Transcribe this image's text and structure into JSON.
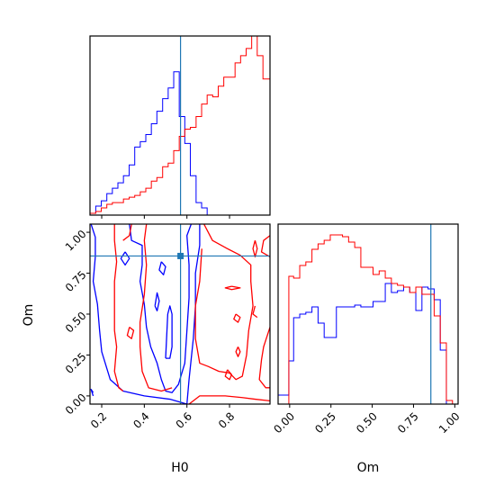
{
  "chart_data": {
    "type": "corner",
    "variables": [
      "H0",
      "Om"
    ],
    "truth": {
      "H0": 0.57,
      "Om": 0.855
    },
    "truth_color": "#1f77b4",
    "series": [
      {
        "color": "#0000ff"
      },
      {
        "color": "#ff0000"
      }
    ],
    "panels": [
      {
        "id": "hist-H0",
        "type": "step-histogram",
        "x_range": [
          0.145,
          0.99
        ],
        "x_ticks": [
          0.2,
          0.4,
          0.6,
          0.8
        ],
        "y_range": [
          0,
          1.0
        ],
        "bin_edges": [
          0.145,
          0.172,
          0.198,
          0.224,
          0.25,
          0.276,
          0.302,
          0.329,
          0.355,
          0.381,
          0.407,
          0.433,
          0.459,
          0.486,
          0.512,
          0.538,
          0.564,
          0.59,
          0.616,
          0.643,
          0.669,
          0.695,
          0.721,
          0.747,
          0.773,
          0.8,
          0.826,
          0.852,
          0.878,
          0.904,
          0.93,
          0.957,
          0.99
        ],
        "counts": [
          [
            0.01,
            0.05,
            0.08,
            0.12,
            0.15,
            0.18,
            0.22,
            0.28,
            0.38,
            0.41,
            0.45,
            0.51,
            0.58,
            0.65,
            0.71,
            0.8,
            0.55,
            0.4,
            0.22,
            0.07,
            0.04,
            0.0,
            0.0,
            0.0,
            0.0,
            0.0,
            0.0,
            0.0,
            0.0,
            0.0,
            0.0,
            0.0
          ],
          [
            0.01,
            0.02,
            0.04,
            0.06,
            0.07,
            0.07,
            0.09,
            0.1,
            0.11,
            0.13,
            0.15,
            0.19,
            0.21,
            0.27,
            0.29,
            0.36,
            0.44,
            0.48,
            0.49,
            0.55,
            0.62,
            0.67,
            0.66,
            0.72,
            0.77,
            0.77,
            0.85,
            0.89,
            0.93,
            1.0,
            0.89,
            0.76
          ]
        ]
      },
      {
        "id": "hist-Om",
        "type": "step-histogram",
        "x_range": [
          -0.07,
          1.02
        ],
        "x_ticks": [
          0.0,
          0.25,
          0.5,
          0.75,
          1.0
        ],
        "x_tick_labels": [
          "0.00",
          "0.25",
          "0.50",
          "0.75",
          "1.00"
        ],
        "y_range": [
          0,
          1.0
        ],
        "bin_edges": [
          -0.07,
          -0.005,
          0.024,
          0.061,
          0.098,
          0.135,
          0.172,
          0.209,
          0.246,
          0.283,
          0.32,
          0.357,
          0.394,
          0.431,
          0.468,
          0.505,
          0.542,
          0.579,
          0.616,
          0.653,
          0.69,
          0.727,
          0.764,
          0.801,
          0.838,
          0.875,
          0.912,
          0.949,
          0.986,
          1.02
        ],
        "counts": [
          [
            0.05,
            0.24,
            0.48,
            0.5,
            0.51,
            0.54,
            0.45,
            0.37,
            0.37,
            0.54,
            0.54,
            0.54,
            0.55,
            0.54,
            0.54,
            0.57,
            0.57,
            0.67,
            0.62,
            0.63,
            0.65,
            0.62,
            0.52,
            0.65,
            0.64,
            0.58,
            0.3,
            0.0,
            0.0
          ],
          [
            0.0,
            0.71,
            0.7,
            0.77,
            0.79,
            0.86,
            0.89,
            0.91,
            0.94,
            0.94,
            0.93,
            0.9,
            0.87,
            0.76,
            0.76,
            0.72,
            0.74,
            0.7,
            0.67,
            0.66,
            0.65,
            0.62,
            0.65,
            0.61,
            0.61,
            0.49,
            0.34,
            0.02,
            0.0
          ]
        ]
      },
      {
        "id": "contour-H0-Om",
        "type": "contour",
        "x": "H0",
        "y": "Om",
        "x_range": [
          0.145,
          0.99
        ],
        "y_range": [
          -0.05,
          1.05
        ],
        "x_ticks": [
          0.2,
          0.4,
          0.6,
          0.8
        ],
        "y_ticks": [
          0.0,
          0.25,
          0.5,
          0.75,
          1.0
        ],
        "y_tick_labels": [
          "0.00",
          "0.25",
          "0.50",
          "0.75",
          "1.00"
        ],
        "contours": [
          [
            [
              [
                0.33,
                1.05
              ],
              [
                0.34,
                0.95
              ],
              [
                0.39,
                0.92
              ],
              [
                0.39,
                0.8
              ],
              [
                0.38,
                0.7
              ],
              [
                0.4,
                0.56
              ],
              [
                0.41,
                0.42
              ],
              [
                0.43,
                0.3
              ],
              [
                0.46,
                0.2
              ],
              [
                0.48,
                0.1
              ],
              [
                0.5,
                0.03
              ],
              [
                0.53,
                0.02
              ],
              [
                0.56,
                0.07
              ],
              [
                0.59,
                0.2
              ],
              [
                0.6,
                0.4
              ],
              [
                0.61,
                0.6
              ],
              [
                0.61,
                0.8
              ],
              [
                0.6,
                0.98
              ],
              [
                0.62,
                1.05
              ]
            ],
            [
              [
                0.15,
                1.05
              ],
              [
                0.17,
                0.97
              ],
              [
                0.17,
                0.85
              ],
              [
                0.16,
                0.7
              ],
              [
                0.18,
                0.56
              ],
              [
                0.19,
                0.4
              ],
              [
                0.2,
                0.27
              ],
              [
                0.24,
                0.1
              ],
              [
                0.3,
                0.03
              ],
              [
                0.4,
                0.0
              ],
              [
                0.52,
                -0.02
              ],
              [
                0.6,
                -0.05
              ]
            ],
            [
              [
                0.66,
                1.05
              ],
              [
                0.66,
                0.92
              ],
              [
                0.64,
                0.75
              ],
              [
                0.64,
                0.55
              ],
              [
                0.63,
                0.35
              ],
              [
                0.61,
                0.1
              ],
              [
                0.6,
                -0.05
              ]
            ],
            [
              [
                0.5,
                0.23
              ],
              [
                0.51,
                0.5
              ],
              [
                0.52,
                0.55
              ],
              [
                0.53,
                0.5
              ],
              [
                0.53,
                0.3
              ],
              [
                0.52,
                0.23
              ],
              [
                0.5,
                0.23
              ]
            ],
            [
              [
                0.45,
                0.55
              ],
              [
                0.46,
                0.63
              ],
              [
                0.47,
                0.58
              ],
              [
                0.46,
                0.52
              ],
              [
                0.45,
                0.55
              ]
            ],
            [
              [
                0.31,
                0.88
              ],
              [
                0.29,
                0.84
              ],
              [
                0.31,
                0.8
              ],
              [
                0.33,
                0.84
              ],
              [
                0.31,
                0.88
              ]
            ],
            [
              [
                0.48,
                0.82
              ],
              [
                0.47,
                0.77
              ],
              [
                0.49,
                0.74
              ],
              [
                0.5,
                0.79
              ],
              [
                0.48,
                0.82
              ]
            ],
            [
              [
                0.16,
                0.0
              ],
              [
                0.15,
                0.04
              ],
              [
                0.16,
                0.02
              ]
            ]
          ],
          [
            [
              [
                0.26,
                1.05
              ],
              [
                0.26,
                0.95
              ],
              [
                0.27,
                0.82
              ],
              [
                0.26,
                0.7
              ],
              [
                0.26,
                0.55
              ],
              [
                0.26,
                0.4
              ],
              [
                0.27,
                0.3
              ],
              [
                0.26,
                0.15
              ],
              [
                0.28,
                0.05
              ],
              [
                0.3,
                0.03
              ]
            ],
            [
              [
                0.61,
                -0.05
              ],
              [
                0.66,
                0.0
              ],
              [
                0.7,
                0.0
              ],
              [
                0.78,
                0.0
              ],
              [
                0.86,
                -0.01
              ],
              [
                0.92,
                -0.02
              ],
              [
                0.99,
                -0.03
              ]
            ],
            [
              [
                0.99,
                0.42
              ],
              [
                0.96,
                0.3
              ],
              [
                0.95,
                0.22
              ],
              [
                0.94,
                0.1
              ],
              [
                0.97,
                0.05
              ],
              [
                0.99,
                0.05
              ]
            ],
            [
              [
                0.99,
                0.98
              ],
              [
                0.96,
                0.95
              ],
              [
                0.95,
                0.88
              ],
              [
                0.99,
                0.85
              ]
            ],
            [
              [
                0.41,
                1.05
              ],
              [
                0.4,
                0.95
              ],
              [
                0.41,
                0.8
              ],
              [
                0.4,
                0.62
              ],
              [
                0.38,
                0.45
              ],
              [
                0.38,
                0.3
              ],
              [
                0.39,
                0.15
              ],
              [
                0.42,
                0.05
              ],
              [
                0.48,
                0.03
              ],
              [
                0.53,
                0.05
              ]
            ],
            [
              [
                0.68,
                1.05
              ],
              [
                0.72,
                0.95
              ],
              [
                0.79,
                0.9
              ],
              [
                0.85,
                0.86
              ],
              [
                0.9,
                0.8
              ],
              [
                0.9,
                0.7
              ],
              [
                0.91,
                0.55
              ],
              [
                0.89,
                0.4
              ],
              [
                0.88,
                0.25
              ],
              [
                0.86,
                0.12
              ],
              [
                0.83,
                0.1
              ],
              [
                0.8,
                0.14
              ],
              [
                0.75,
                0.15
              ],
              [
                0.7,
                0.18
              ],
              [
                0.66,
                0.2
              ],
              [
                0.64,
                0.35
              ],
              [
                0.64,
                0.55
              ],
              [
                0.66,
                0.7
              ],
              [
                0.67,
                0.9
              ]
            ],
            [
              [
                0.33,
                0.42
              ],
              [
                0.32,
                0.37
              ],
              [
                0.34,
                0.35
              ],
              [
                0.35,
                0.4
              ],
              [
                0.33,
                0.42
              ]
            ],
            [
              [
                0.81,
                0.67
              ],
              [
                0.78,
                0.66
              ],
              [
                0.81,
                0.65
              ],
              [
                0.85,
                0.66
              ],
              [
                0.81,
                0.67
              ]
            ],
            [
              [
                0.83,
                0.5
              ],
              [
                0.82,
                0.47
              ],
              [
                0.84,
                0.45
              ],
              [
                0.85,
                0.48
              ],
              [
                0.83,
                0.5
              ]
            ],
            [
              [
                0.84,
                0.3
              ],
              [
                0.83,
                0.27
              ],
              [
                0.84,
                0.24
              ],
              [
                0.85,
                0.27
              ],
              [
                0.84,
                0.3
              ]
            ],
            [
              [
                0.92,
                0.95
              ],
              [
                0.91,
                0.9
              ],
              [
                0.92,
                0.85
              ],
              [
                0.93,
                0.9
              ],
              [
                0.92,
                0.95
              ]
            ],
            [
              [
                0.79,
                0.16
              ],
              [
                0.78,
                0.12
              ],
              [
                0.8,
                0.1
              ],
              [
                0.81,
                0.13
              ],
              [
                0.79,
                0.16
              ]
            ],
            [
              [
                0.3,
                0.95
              ],
              [
                0.33,
                0.98
              ],
              [
                0.34,
                1.05
              ]
            ],
            [
              [
                0.92,
                0.55
              ],
              [
                0.91,
                0.5
              ],
              [
                0.93,
                0.48
              ]
            ]
          ]
        ]
      }
    ],
    "xlabels": [
      "H0",
      "Om"
    ],
    "ylabel": "Om"
  }
}
